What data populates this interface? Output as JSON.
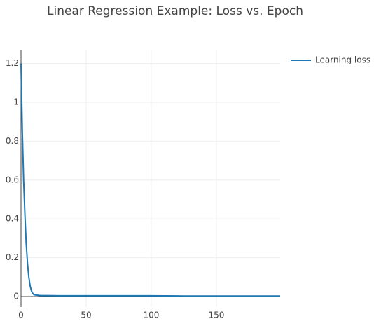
{
  "chart_data": {
    "type": "line",
    "title": "Linear Regression Example: Loss vs. Epoch",
    "x": [
      0,
      1,
      2,
      3,
      4,
      5,
      6,
      7,
      8,
      9,
      10,
      15,
      20,
      30,
      50,
      75,
      100,
      125,
      150,
      175,
      199
    ],
    "series": [
      {
        "name": "Learning loss",
        "color": "#1f77b4",
        "values": [
          1.2,
          0.85,
          0.6,
          0.42,
          0.27,
          0.17,
          0.1,
          0.055,
          0.03,
          0.016,
          0.009,
          0.005,
          0.005,
          0.004,
          0.004,
          0.004,
          0.004,
          0.003,
          0.003,
          0.003,
          0.003
        ]
      }
    ],
    "xlim": [
      0,
      199
    ],
    "xticks": [
      0,
      50,
      100,
      150
    ],
    "ylim": [
      -0.054,
      1.267
    ],
    "yticks": [
      0,
      0.2,
      0.4,
      0.6,
      0.8,
      1,
      1.2
    ],
    "grid": true,
    "legend": "top-right"
  }
}
